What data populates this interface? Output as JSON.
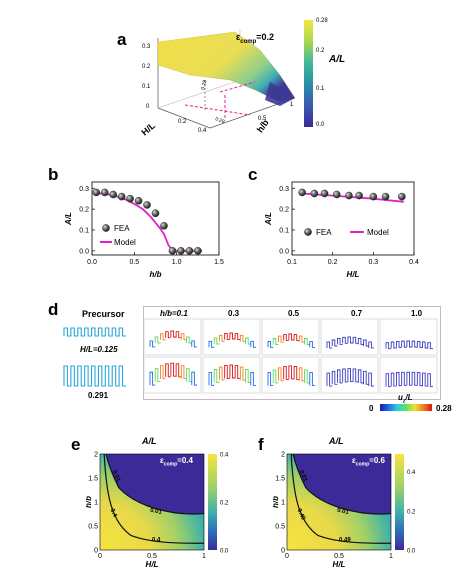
{
  "panels": {
    "a": {
      "letter": "a",
      "eps_label": "ε",
      "eps_sub": "comp",
      "eps_value": "=0.2",
      "colorbar_title": "A/L",
      "colorbar_ticks": [
        "0.28",
        "0.2",
        "0.1",
        "0.0"
      ],
      "z_ticks": [
        "0.3",
        "0.2",
        "0.1",
        "0"
      ],
      "x_axis_label": "H/L",
      "x_ticks": [
        "0.2",
        "0.4"
      ],
      "y_axis_label": "h/b",
      "y_ticks": [
        "0.5",
        "1"
      ],
      "contour_labels": [
        "0.28",
        "0.28"
      ],
      "colors": {
        "high": "#f5e04a",
        "low": "#3a2a9a"
      }
    },
    "b": {
      "letter": "b",
      "xlabel": "h/b",
      "ylabel": "A/L",
      "legend": [
        "FEA",
        "Model"
      ]
    },
    "c": {
      "letter": "c",
      "xlabel": "H/L",
      "ylabel": "A/L",
      "legend": [
        "FEA",
        "Model"
      ]
    },
    "d": {
      "letter": "d",
      "precursor_title": "Precursor",
      "precursor_labels": [
        "H/L=0.125",
        "0.291"
      ],
      "column_headers": [
        "h/b=0.1",
        "0.3",
        "0.5",
        "0.7",
        "1.0"
      ],
      "colorbar_title": "u",
      "colorbar_sub": "z",
      "colorbar_suffix": "/L",
      "colorbar_min": "0",
      "colorbar_max": "0.28"
    },
    "e": {
      "letter": "e",
      "title": "A/L",
      "eps_label": "ε",
      "eps_sub": "comp",
      "eps_value": "=0.4",
      "xlabel": "H/L",
      "ylabel": "h/b",
      "contour_labels": [
        "0.01",
        "0.01",
        "0.4",
        "0.4"
      ],
      "colorbar_ticks": [
        "0.4",
        "0.2",
        "0.0"
      ]
    },
    "f": {
      "letter": "f",
      "title": "A/L",
      "eps_label": "ε",
      "eps_sub": "comp",
      "eps_value": "=0.6",
      "xlabel": "H/L",
      "ylabel": "h/b",
      "contour_labels": [
        "0.01",
        "0.01",
        "0.49",
        "0.49"
      ],
      "colorbar_ticks": [
        "0.4",
        "0.2",
        "0.0"
      ]
    }
  },
  "chart_data": [
    {
      "id": "b",
      "type": "scatter",
      "xlabel": "h/b",
      "ylabel": "A/L",
      "xlim": [
        0.0,
        1.5
      ],
      "ylim": [
        -0.02,
        0.33
      ],
      "x_ticks": [
        0.0,
        0.5,
        1.0,
        1.5
      ],
      "y_ticks": [
        0.0,
        0.1,
        0.2,
        0.3
      ],
      "series": [
        {
          "name": "FEA",
          "kind": "points",
          "x": [
            0.05,
            0.15,
            0.25,
            0.35,
            0.45,
            0.55,
            0.65,
            0.75,
            0.85,
            0.95,
            1.05,
            1.15,
            1.25
          ],
          "y": [
            0.28,
            0.28,
            0.27,
            0.26,
            0.25,
            0.24,
            0.22,
            0.18,
            0.12,
            0.0,
            0.0,
            0.0,
            0.0
          ]
        },
        {
          "name": "Model",
          "kind": "line",
          "x": [
            0.0,
            0.1,
            0.2,
            0.3,
            0.4,
            0.5,
            0.6,
            0.7,
            0.8,
            0.85,
            0.9,
            0.95,
            1.0,
            1.3
          ],
          "y": [
            0.28,
            0.275,
            0.27,
            0.26,
            0.245,
            0.225,
            0.2,
            0.16,
            0.11,
            0.08,
            0.03,
            0.0,
            0.0,
            0.0
          ]
        }
      ]
    },
    {
      "id": "c",
      "type": "scatter",
      "xlabel": "H/L",
      "ylabel": "A/L",
      "xlim": [
        0.1,
        0.4
      ],
      "ylim": [
        -0.02,
        0.33
      ],
      "x_ticks": [
        0.1,
        0.2,
        0.3,
        0.4
      ],
      "y_ticks": [
        0.0,
        0.1,
        0.2,
        0.3
      ],
      "series": [
        {
          "name": "FEA",
          "kind": "points",
          "x": [
            0.125,
            0.155,
            0.18,
            0.21,
            0.24,
            0.265,
            0.3,
            0.33,
            0.37
          ],
          "y": [
            0.28,
            0.275,
            0.275,
            0.27,
            0.265,
            0.265,
            0.26,
            0.26,
            0.26
          ]
        },
        {
          "name": "Model",
          "kind": "line",
          "x": [
            0.125,
            0.2,
            0.3,
            0.375
          ],
          "y": [
            0.275,
            0.265,
            0.25,
            0.235
          ]
        }
      ]
    },
    {
      "id": "e",
      "type": "heatmap",
      "xlabel": "H/L",
      "ylabel": "h/b",
      "xlim": [
        0,
        1
      ],
      "ylim": [
        0,
        2
      ],
      "x_ticks": [
        0,
        0.5,
        1
      ],
      "y_ticks": [
        0,
        0.5,
        1.0,
        1.5,
        2.0
      ],
      "colorbar_range": [
        0.0,
        0.4
      ]
    },
    {
      "id": "f",
      "type": "heatmap",
      "xlabel": "H/L",
      "ylabel": "h/b",
      "xlim": [
        0,
        1
      ],
      "ylim": [
        0,
        2
      ],
      "x_ticks": [
        0,
        0.5,
        1
      ],
      "y_ticks": [
        0,
        0.5,
        1.0,
        1.5,
        2.0
      ],
      "colorbar_range": [
        0.0,
        0.49
      ]
    }
  ]
}
